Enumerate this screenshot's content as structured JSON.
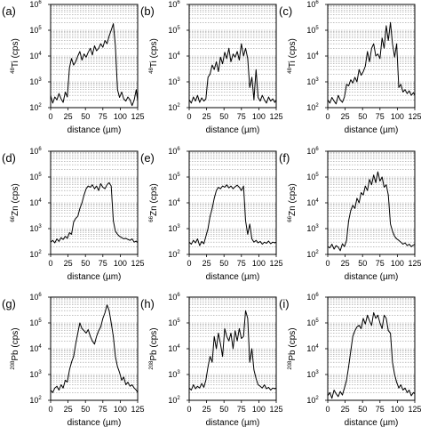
{
  "figure": {
    "x_label": "distance (µm)",
    "x_unit_note": "µm"
  },
  "chart_data": [
    {
      "type": "line",
      "panel": "(a)",
      "ylabel_mass": "48",
      "ylabel_elem": "Ti",
      "ylabel_unit": "(cps)",
      "xlabel": "distance (µm)",
      "xlim": [
        0,
        125
      ],
      "ylim_log10": [
        2,
        6
      ],
      "log_y": true,
      "x_ticks": [
        "0",
        "25",
        "50",
        "75",
        "100",
        "125"
      ],
      "y_tick_exponents": [
        "2",
        "3",
        "4",
        "5",
        "6"
      ],
      "x": [
        0,
        3,
        6,
        9,
        12,
        15,
        18,
        21,
        24,
        27,
        30,
        33,
        36,
        39,
        42,
        45,
        48,
        51,
        54,
        57,
        60,
        63,
        66,
        69,
        72,
        75,
        78,
        81,
        84,
        87,
        90,
        93,
        96,
        99,
        102,
        105,
        108,
        111,
        114,
        117,
        120,
        123,
        125
      ],
      "y": [
        300,
        150,
        260,
        200,
        350,
        220,
        160,
        400,
        260,
        3500,
        8000,
        4500,
        6000,
        10000,
        15000,
        7000,
        12000,
        9000,
        14000,
        20000,
        11000,
        25000,
        16000,
        20000,
        30000,
        22000,
        40000,
        30000,
        60000,
        100000,
        180000,
        25000,
        500,
        250,
        400,
        220,
        180,
        260,
        200,
        120,
        200,
        500,
        180
      ]
    },
    {
      "type": "line",
      "panel": "(b)",
      "ylabel_mass": "48",
      "ylabel_elem": "Ti",
      "ylabel_unit": "(cps)",
      "xlabel": "distance (µm)",
      "xlim": [
        0,
        125
      ],
      "ylim_log10": [
        2,
        6
      ],
      "log_y": true,
      "x_ticks": [
        "0",
        "25",
        "50",
        "75",
        "100",
        "125"
      ],
      "y_tick_exponents": [
        "2",
        "3",
        "4",
        "5",
        "6"
      ],
      "x": [
        0,
        3,
        6,
        9,
        12,
        15,
        18,
        21,
        24,
        27,
        30,
        33,
        36,
        39,
        42,
        45,
        48,
        51,
        54,
        57,
        60,
        63,
        66,
        69,
        72,
        75,
        78,
        81,
        84,
        87,
        90,
        93,
        96,
        99,
        102,
        105,
        108,
        111,
        114,
        117,
        120,
        123,
        125
      ],
      "y": [
        200,
        150,
        260,
        180,
        300,
        160,
        240,
        180,
        220,
        1500,
        2000,
        4500,
        3000,
        6000,
        2500,
        9000,
        5000,
        14000,
        8000,
        20000,
        6000,
        12000,
        9000,
        15000,
        7000,
        30000,
        10000,
        20000,
        8000,
        600,
        1500,
        200,
        3000,
        250,
        180,
        300,
        200,
        150,
        260,
        180,
        220,
        160,
        200
      ]
    },
    {
      "type": "line",
      "panel": "(c)",
      "ylabel_mass": "48",
      "ylabel_elem": "Ti",
      "ylabel_unit": "(cps)",
      "xlabel": "distance (µm)",
      "xlim": [
        0,
        125
      ],
      "ylim_log10": [
        2,
        6
      ],
      "log_y": true,
      "x_ticks": [
        "0",
        "25",
        "50",
        "75",
        "100",
        "125"
      ],
      "y_tick_exponents": [
        "2",
        "3",
        "4",
        "5",
        "6"
      ],
      "x": [
        0,
        3,
        6,
        9,
        12,
        15,
        18,
        21,
        24,
        27,
        30,
        33,
        36,
        39,
        42,
        45,
        48,
        51,
        54,
        57,
        60,
        63,
        66,
        69,
        72,
        75,
        78,
        81,
        84,
        87,
        90,
        93,
        96,
        99,
        102,
        105,
        108,
        111,
        114,
        117,
        120,
        123,
        125
      ],
      "y": [
        200,
        150,
        250,
        180,
        140,
        300,
        200,
        160,
        260,
        800,
        700,
        1200,
        900,
        1500,
        1000,
        3000,
        1800,
        2500,
        4000,
        15000,
        6000,
        20000,
        30000,
        10000,
        12000,
        8000,
        50000,
        20000,
        150000,
        40000,
        200000,
        30000,
        9000,
        30000,
        600,
        800,
        400,
        500,
        350,
        450,
        300,
        380,
        300
      ]
    },
    {
      "type": "line",
      "panel": "(d)",
      "ylabel_mass": "66",
      "ylabel_elem": "Zn",
      "ylabel_unit": "(cps)",
      "xlabel": "distance (µm)",
      "xlim": [
        0,
        125
      ],
      "ylim_log10": [
        2,
        6
      ],
      "log_y": true,
      "x_ticks": [
        "0",
        "25",
        "50",
        "75",
        "100",
        "125"
      ],
      "y_tick_exponents": [
        "2",
        "3",
        "4",
        "5",
        "6"
      ],
      "x": [
        0,
        3,
        6,
        9,
        12,
        15,
        18,
        21,
        24,
        27,
        30,
        33,
        36,
        39,
        42,
        45,
        48,
        51,
        54,
        57,
        60,
        63,
        66,
        69,
        72,
        75,
        78,
        81,
        84,
        87,
        90,
        93,
        96,
        99,
        102,
        105,
        108,
        111,
        114,
        117,
        120,
        123,
        125
      ],
      "y": [
        300,
        350,
        280,
        400,
        320,
        450,
        380,
        500,
        420,
        700,
        600,
        1800,
        2500,
        3000,
        6000,
        10000,
        20000,
        35000,
        45000,
        40000,
        50000,
        35000,
        45000,
        30000,
        55000,
        40000,
        35000,
        50000,
        60000,
        45000,
        2000,
        800,
        600,
        500,
        450,
        400,
        420,
        380,
        350,
        400,
        300,
        330,
        280
      ]
    },
    {
      "type": "line",
      "panel": "(e)",
      "ylabel_mass": "66",
      "ylabel_elem": "Zn",
      "ylabel_unit": "(cps)",
      "xlabel": "distance (µm)",
      "xlim": [
        0,
        125
      ],
      "ylim_log10": [
        2,
        6
      ],
      "log_y": true,
      "x_ticks": [
        "0",
        "25",
        "50",
        "75",
        "100",
        "125"
      ],
      "y_tick_exponents": [
        "2",
        "3",
        "4",
        "5",
        "6"
      ],
      "x": [
        0,
        3,
        6,
        9,
        12,
        15,
        18,
        21,
        24,
        27,
        30,
        33,
        36,
        39,
        42,
        45,
        48,
        51,
        54,
        57,
        60,
        63,
        66,
        69,
        72,
        75,
        78,
        81,
        84,
        87,
        90,
        93,
        96,
        99,
        102,
        105,
        108,
        111,
        114,
        117,
        120,
        123,
        125
      ],
      "y": [
        300,
        250,
        350,
        280,
        400,
        220,
        320,
        260,
        500,
        1000,
        3000,
        6000,
        15000,
        30000,
        40000,
        35000,
        45000,
        40000,
        50000,
        38000,
        45000,
        35000,
        42000,
        48000,
        40000,
        30000,
        45000,
        2000,
        600,
        1500,
        400,
        300,
        350,
        280,
        320,
        250,
        300,
        270,
        330,
        260,
        300,
        280,
        300
      ]
    },
    {
      "type": "line",
      "panel": "(f)",
      "ylabel_mass": "66",
      "ylabel_elem": "Zn",
      "ylabel_unit": "(cps)",
      "xlabel": "distance (µm)",
      "xlim": [
        0,
        125
      ],
      "ylim_log10": [
        2,
        6
      ],
      "log_y": true,
      "x_ticks": [
        "0",
        "25",
        "50",
        "75",
        "100",
        "125"
      ],
      "y_tick_exponents": [
        "2",
        "3",
        "4",
        "5",
        "6"
      ],
      "x": [
        0,
        3,
        6,
        9,
        12,
        15,
        18,
        21,
        24,
        27,
        30,
        33,
        36,
        39,
        42,
        45,
        48,
        51,
        54,
        57,
        60,
        63,
        66,
        69,
        72,
        75,
        78,
        81,
        84,
        87,
        90,
        93,
        96,
        99,
        102,
        105,
        108,
        111,
        114,
        117,
        120,
        123,
        125
      ],
      "y": [
        200,
        180,
        250,
        160,
        220,
        190,
        140,
        260,
        200,
        350,
        2000,
        5000,
        8000,
        6000,
        15000,
        10000,
        25000,
        20000,
        45000,
        30000,
        80000,
        50000,
        120000,
        60000,
        160000,
        70000,
        100000,
        40000,
        50000,
        20000,
        1500,
        800,
        500,
        400,
        350,
        300,
        250,
        280,
        220,
        250,
        200,
        230,
        250
      ]
    },
    {
      "type": "line",
      "panel": "(g)",
      "ylabel_mass": "208",
      "ylabel_elem": "Pb",
      "ylabel_unit": "(cps)",
      "xlabel": "distance (µm)",
      "xlim": [
        0,
        125
      ],
      "ylim_log10": [
        2,
        6
      ],
      "log_y": true,
      "x_ticks": [
        "0",
        "25",
        "50",
        "75",
        "100",
        "125"
      ],
      "y_tick_exponents": [
        "2",
        "3",
        "4",
        "5",
        "6"
      ],
      "x": [
        0,
        3,
        6,
        9,
        12,
        15,
        18,
        21,
        24,
        27,
        30,
        33,
        36,
        39,
        42,
        45,
        48,
        51,
        54,
        57,
        60,
        63,
        66,
        69,
        72,
        75,
        78,
        81,
        84,
        87,
        90,
        93,
        96,
        99,
        102,
        105,
        108,
        111,
        114,
        117,
        120,
        123,
        125
      ],
      "y": [
        250,
        200,
        300,
        350,
        250,
        400,
        300,
        600,
        500,
        1500,
        3000,
        5000,
        15000,
        40000,
        100000,
        60000,
        50000,
        40000,
        55000,
        30000,
        20000,
        15000,
        30000,
        50000,
        70000,
        150000,
        250000,
        500000,
        300000,
        100000,
        30000,
        5000,
        2000,
        1200,
        600,
        800,
        400,
        500,
        350,
        400,
        300,
        250,
        200
      ]
    },
    {
      "type": "line",
      "panel": "(h)",
      "ylabel_mass": "208",
      "ylabel_elem": "Pb",
      "ylabel_unit": "(cps)",
      "xlabel": "distance (µm)",
      "xlim": [
        0,
        125
      ],
      "ylim_log10": [
        2,
        6
      ],
      "log_y": true,
      "x_ticks": [
        "0",
        "25",
        "50",
        "75",
        "100",
        "125"
      ],
      "y_tick_exponents": [
        "2",
        "3",
        "4",
        "5",
        "6"
      ],
      "x": [
        0,
        3,
        6,
        9,
        12,
        15,
        18,
        21,
        24,
        27,
        30,
        33,
        36,
        39,
        42,
        45,
        48,
        51,
        54,
        57,
        60,
        63,
        66,
        69,
        72,
        75,
        78,
        81,
        84,
        87,
        90,
        93,
        96,
        99,
        102,
        105,
        108,
        111,
        114,
        117,
        120,
        123,
        125
      ],
      "y": [
        300,
        250,
        400,
        280,
        350,
        300,
        450,
        320,
        600,
        2000,
        5000,
        3000,
        30000,
        10000,
        40000,
        15000,
        5000,
        60000,
        30000,
        20000,
        40000,
        10000,
        50000,
        20000,
        60000,
        25000,
        30000,
        300000,
        150000,
        3000,
        10000,
        1500,
        700,
        400,
        350,
        300,
        400,
        280,
        320,
        250,
        300,
        280,
        300
      ]
    },
    {
      "type": "line",
      "panel": "(i)",
      "ylabel_mass": "208",
      "ylabel_elem": "Pb",
      "ylabel_unit": "(cps)",
      "xlabel": "distance (µm)",
      "xlim": [
        0,
        125
      ],
      "ylim_log10": [
        2,
        6
      ],
      "log_y": true,
      "x_ticks": [
        "0",
        "25",
        "50",
        "75",
        "100",
        "125"
      ],
      "y_tick_exponents": [
        "2",
        "3",
        "4",
        "5",
        "6"
      ],
      "x": [
        0,
        3,
        6,
        9,
        12,
        15,
        18,
        21,
        24,
        27,
        30,
        33,
        36,
        39,
        42,
        45,
        48,
        51,
        54,
        57,
        60,
        63,
        66,
        69,
        72,
        75,
        78,
        81,
        84,
        87,
        90,
        93,
        96,
        99,
        102,
        105,
        108,
        111,
        114,
        117,
        120,
        123,
        125
      ],
      "y": [
        150,
        200,
        120,
        250,
        180,
        140,
        220,
        160,
        300,
        600,
        2000,
        8000,
        30000,
        50000,
        70000,
        80000,
        60000,
        150000,
        90000,
        200000,
        120000,
        80000,
        250000,
        150000,
        200000,
        100000,
        60000,
        200000,
        150000,
        50000,
        40000,
        3000,
        1000,
        500,
        300,
        400,
        250,
        300,
        200,
        250,
        150,
        200,
        180
      ]
    }
  ]
}
